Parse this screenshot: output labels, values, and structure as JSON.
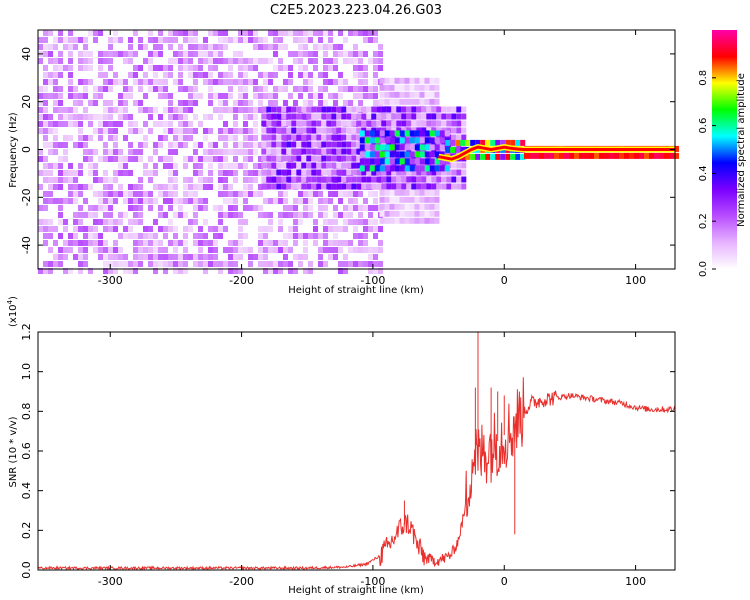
{
  "title": "C2E5.2023.223.04.26.G03",
  "chart_data": [
    {
      "type": "heatmap",
      "name": "spectrogram",
      "xlabel": "Height of straight line (km)",
      "ylabel": "Frequency (Hz)",
      "xlim": [
        -355,
        130
      ],
      "ylim": [
        -50,
        50
      ],
      "xticks": [
        -300,
        -200,
        -100,
        0,
        100
      ],
      "yticks": [
        -40,
        -20,
        0,
        20,
        40
      ],
      "colorbar": {
        "label": "Normalized spectral amplitude",
        "range": [
          0,
          1
        ],
        "ticks": [
          "0.0",
          "0.2",
          "0.4",
          "0.6",
          "0.8"
        ],
        "tick_values": [
          0.0,
          0.2,
          0.4,
          0.6,
          0.8
        ],
        "colors": [
          "#ffffff",
          "#e6b3ff",
          "#b84dff",
          "#7a00ff",
          "#0000ff",
          "#00ffff",
          "#00ff00",
          "#ffff00",
          "#ff0000",
          "#ff00aa"
        ]
      },
      "regions": [
        {
          "x": [
            -355,
            -95
          ],
          "freq": [
            -50,
            50
          ],
          "amplitude": 0.15,
          "note_density": "dense noise"
        },
        {
          "x": [
            -95,
            -50
          ],
          "freq": [
            -30,
            30
          ],
          "amplitude": 0.1
        },
        {
          "x": [
            -185,
            -30
          ],
          "freq": [
            -15,
            18
          ],
          "amplitude": 0.25
        },
        {
          "x": [
            -110,
            -45
          ],
          "freq": [
            -8,
            8
          ],
          "amplitude": 0.45
        },
        {
          "x": [
            -45,
            15
          ],
          "freq": [
            -4,
            4
          ],
          "amplitude": 0.65
        },
        {
          "x": [
            15,
            130
          ],
          "freq": [
            -1.5,
            1.5
          ],
          "amplitude": 0.9
        }
      ],
      "ridge": {
        "x": [
          -50,
          -45,
          -40,
          -35,
          -30,
          -25,
          -20,
          -15,
          -10,
          -5,
          0,
          5,
          10,
          15,
          130
        ],
        "freq": [
          -3,
          -3.5,
          -4,
          -3,
          -1.5,
          0,
          1,
          0.5,
          0,
          0.5,
          1,
          0.5,
          0.2,
          0,
          0
        ]
      }
    },
    {
      "type": "line",
      "name": "snr",
      "xlabel": "Height of straight line (km)",
      "ylabel": "SNR (10 * v/v)",
      "yscale_label": "(x10",
      "yscale_exponent": "4",
      "yscale_suffix": ")",
      "xlim": [
        -355,
        130
      ],
      "ylim": [
        0,
        1.2
      ],
      "xticks": [
        -300,
        -200,
        -100,
        0,
        100
      ],
      "yticks": [
        "0.0",
        "0.2",
        "0.4",
        "0.6",
        "0.8",
        "1.0",
        "1.2"
      ],
      "ytick_values": [
        0,
        0.2,
        0.4,
        0.6,
        0.8,
        1.0,
        1.2
      ],
      "color": "#e8302d",
      "x": [
        -355,
        -300,
        -250,
        -200,
        -150,
        -120,
        -105,
        -95,
        -88,
        -82,
        -78,
        -74,
        -70,
        -66,
        -60,
        -55,
        -50,
        -45,
        -40,
        -35,
        -30,
        -26,
        -22,
        -20,
        -18,
        -15,
        -10,
        -5,
        0,
        5,
        10,
        15,
        20,
        30,
        40,
        50,
        60,
        70,
        80,
        90,
        100,
        110,
        120,
        130
      ],
      "y": [
        0.01,
        0.01,
        0.01,
        0.01,
        0.01,
        0.015,
        0.03,
        0.07,
        0.12,
        0.18,
        0.22,
        0.24,
        0.2,
        0.12,
        0.06,
        0.05,
        0.05,
        0.06,
        0.08,
        0.15,
        0.3,
        0.5,
        0.6,
        0.55,
        0.58,
        0.6,
        0.62,
        0.65,
        0.68,
        0.7,
        0.76,
        0.8,
        0.84,
        0.86,
        0.87,
        0.88,
        0.87,
        0.86,
        0.85,
        0.84,
        0.82,
        0.81,
        0.81,
        0.81
      ],
      "spikes": [
        {
          "x": -76,
          "y": 0.35
        },
        {
          "x": -22,
          "y": 0.92
        },
        {
          "x": -20,
          "y": 1.2
        },
        {
          "x": -10,
          "y": 0.92
        },
        {
          "x": -5,
          "y": 0.9
        },
        {
          "x": 0,
          "y": 0.88
        },
        {
          "x": 8,
          "y": 0.18
        }
      ]
    }
  ]
}
